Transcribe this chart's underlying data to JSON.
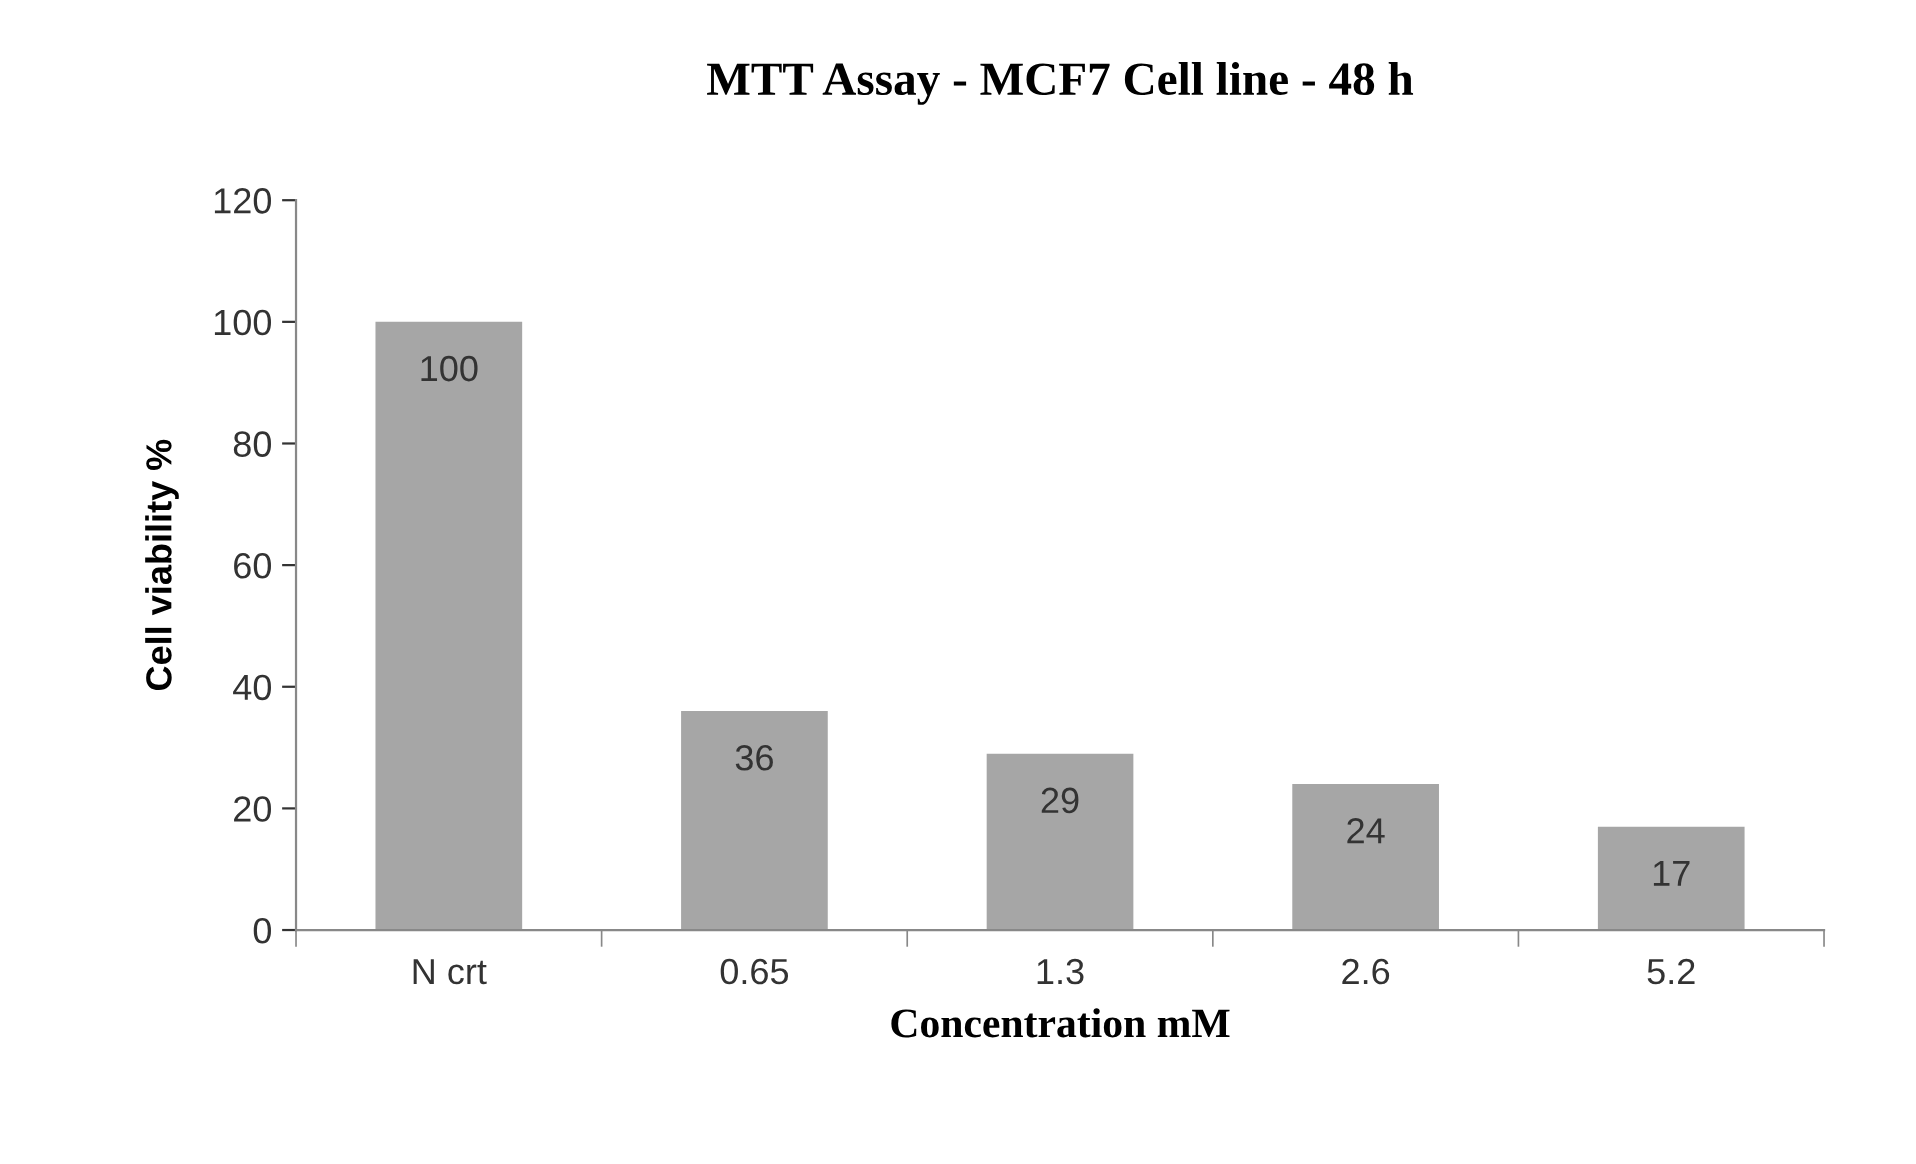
{
  "chart_data": {
    "type": "bar",
    "title": "MTT Assay - MCF7 Cell line - 48 h",
    "xlabel": "Concentration mM",
    "ylabel": "Cell viability %",
    "categories": [
      "N crt",
      "0.65",
      "1.3",
      "2.6",
      "5.2"
    ],
    "values": [
      100,
      36,
      29,
      24,
      17
    ],
    "color": "#a6a6a6",
    "ylim": [
      0,
      120
    ],
    "yticks": [
      0,
      20,
      40,
      60,
      80,
      100,
      120
    ],
    "grid": false,
    "data_labels": true
  }
}
